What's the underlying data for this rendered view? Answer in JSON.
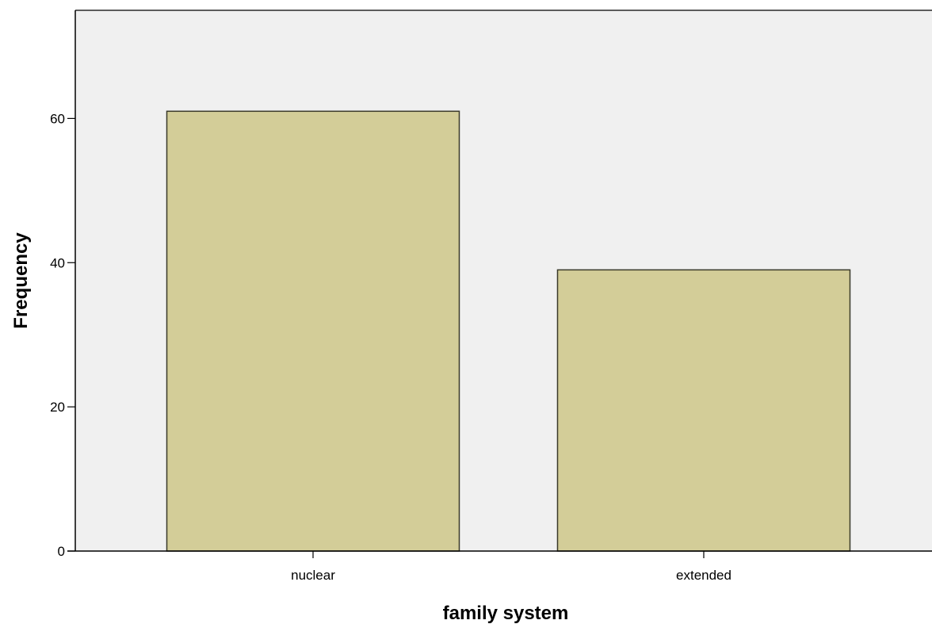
{
  "chart_data": {
    "type": "bar",
    "categories": [
      "nuclear",
      "extended"
    ],
    "values": [
      61,
      39
    ],
    "title": "",
    "xlabel": "family system",
    "ylabel": "Frequency",
    "ylim": [
      0,
      75
    ],
    "yticks": [
      "0",
      "20",
      "40",
      "60"
    ],
    "grid": false,
    "legend": "none"
  },
  "colors": {
    "plot_background": "#f0f0f0",
    "bar_fill": "#d3cd98",
    "bar_stroke": "#3a3a2a",
    "axis": "#000000"
  }
}
